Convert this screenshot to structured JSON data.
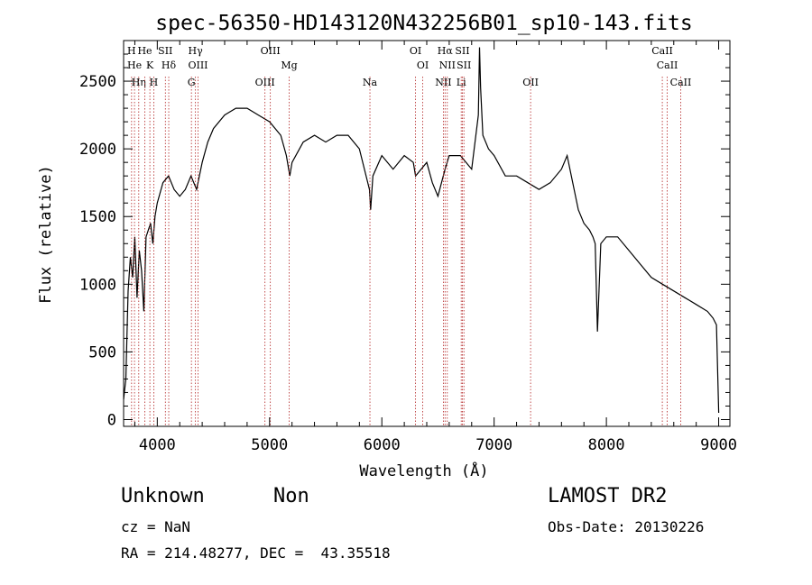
{
  "chart_data": {
    "type": "line",
    "title": "spec-56350-HD143120N432256B01_sp10-143.fits",
    "xlabel": "Wavelength (Å)",
    "ylabel": "Flux (relative)",
    "xlim": [
      3700,
      9100
    ],
    "ylim": [
      -50,
      2800
    ],
    "x_ticks": [
      4000,
      5000,
      6000,
      7000,
      8000,
      9000
    ],
    "y_ticks": [
      0,
      500,
      1000,
      1500,
      2000,
      2500
    ],
    "grid": false,
    "series": [
      {
        "color": "#000000",
        "x": [
          3700,
          3720,
          3740,
          3760,
          3780,
          3800,
          3820,
          3840,
          3860,
          3880,
          3900,
          3920,
          3940,
          3960,
          3980,
          4000,
          4050,
          4100,
          4150,
          4200,
          4250,
          4300,
          4350,
          4400,
          4450,
          4500,
          4600,
          4700,
          4800,
          4900,
          5000,
          5100,
          5150,
          5180,
          5200,
          5300,
          5400,
          5500,
          5600,
          5700,
          5800,
          5890,
          5900,
          5920,
          6000,
          6100,
          6200,
          6280,
          6300,
          6400,
          6450,
          6500,
          6563,
          6600,
          6700,
          6800,
          6860,
          6870,
          6880,
          6900,
          6950,
          7000,
          7100,
          7200,
          7300,
          7400,
          7500,
          7600,
          7650,
          7700,
          7750,
          7800,
          7850,
          7880,
          7900,
          7920,
          7950,
          8000,
          8100,
          8200,
          8300,
          8400,
          8500,
          8600,
          8700,
          8800,
          8900,
          8950,
          8980,
          9000
        ],
        "values": [
          150,
          300,
          950,
          1200,
          1050,
          1350,
          900,
          1250,
          1100,
          800,
          1350,
          1400,
          1450,
          1300,
          1500,
          1600,
          1750,
          1800,
          1700,
          1650,
          1700,
          1800,
          1700,
          1900,
          2050,
          2150,
          2250,
          2300,
          2300,
          2250,
          2200,
          2100,
          1950,
          1800,
          1900,
          2050,
          2100,
          2050,
          2100,
          2100,
          2000,
          1700,
          1550,
          1800,
          1950,
          1850,
          1950,
          1900,
          1800,
          1900,
          1750,
          1650,
          1850,
          1950,
          1950,
          1850,
          2250,
          2750,
          2450,
          2100,
          2000,
          1950,
          1800,
          1800,
          1750,
          1700,
          1750,
          1850,
          1950,
          1750,
          1550,
          1450,
          1400,
          1350,
          1300,
          650,
          1300,
          1350,
          1350,
          1250,
          1150,
          1050,
          1000,
          950,
          900,
          850,
          800,
          750,
          700,
          50
        ]
      }
    ],
    "lines": [
      {
        "wavelength": 3771,
        "label": "H"
      },
      {
        "wavelength": 3797,
        "label": "He"
      },
      {
        "wavelength": 3835,
        "label": "Hη"
      },
      {
        "wavelength": 3889,
        "label": "He"
      },
      {
        "wavelength": 3934,
        "label": "K"
      },
      {
        "wavelength": 3969,
        "label": "H"
      },
      {
        "wavelength": 4072,
        "label": "SII"
      },
      {
        "wavelength": 4102,
        "label": "Hδ"
      },
      {
        "wavelength": 4304,
        "label": "G"
      },
      {
        "wavelength": 4340,
        "label": "Hγ"
      },
      {
        "wavelength": 4363,
        "label": "OIII"
      },
      {
        "wavelength": 4959,
        "label": "OIII"
      },
      {
        "wavelength": 5007,
        "label": "OIII"
      },
      {
        "wavelength": 5175,
        "label": "Mg"
      },
      {
        "wavelength": 5894,
        "label": "Na"
      },
      {
        "wavelength": 6300,
        "label": "OI"
      },
      {
        "wavelength": 6364,
        "label": "OI"
      },
      {
        "wavelength": 6548,
        "label": "NII"
      },
      {
        "wavelength": 6563,
        "label": "Hα"
      },
      {
        "wavelength": 6583,
        "label": "NII"
      },
      {
        "wavelength": 6707,
        "label": "Li"
      },
      {
        "wavelength": 6717,
        "label": "SII"
      },
      {
        "wavelength": 6731,
        "label": "SII"
      },
      {
        "wavelength": 7325,
        "label": "OII"
      },
      {
        "wavelength": 8498,
        "label": "CaII"
      },
      {
        "wavelength": 8542,
        "label": "CaII"
      },
      {
        "wavelength": 8662,
        "label": "CaII"
      }
    ]
  },
  "info": {
    "class_label": "Unknown",
    "subclass_label": "Non",
    "survey_label": "LAMOST DR2",
    "cz_text": "cz = NaN",
    "obs_date_text": "Obs-Date: 20130226",
    "coords_text": "RA = 214.48277, DEC =  43.35518"
  }
}
